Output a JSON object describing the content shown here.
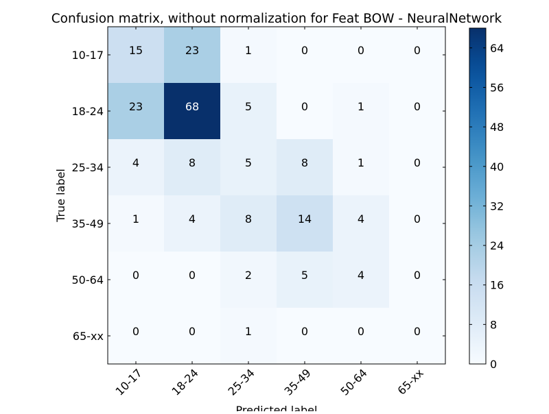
{
  "chart_data": {
    "type": "heatmap",
    "title": "Confusion matrix, without normalization for Feat BOW - NeuralNetwork",
    "xlabel": "Predicted label",
    "ylabel": "True label",
    "x_categories": [
      "10-17",
      "18-24",
      "25-34",
      "35-49",
      "50-64",
      "65-xx"
    ],
    "y_categories": [
      "10-17",
      "18-24",
      "25-34",
      "35-49",
      "50-64",
      "65-xx"
    ],
    "matrix": [
      [
        15,
        23,
        1,
        0,
        0,
        0
      ],
      [
        23,
        68,
        5,
        0,
        1,
        0
      ],
      [
        4,
        8,
        5,
        8,
        1,
        0
      ],
      [
        1,
        4,
        8,
        14,
        4,
        0
      ],
      [
        0,
        0,
        2,
        5,
        4,
        0
      ],
      [
        0,
        0,
        1,
        0,
        0,
        0
      ]
    ],
    "colormap": "Blues",
    "vmin": 0,
    "vmax": 68,
    "colorbar_ticks": [
      0,
      8,
      16,
      24,
      32,
      40,
      48,
      56,
      64
    ],
    "colors": {
      "low": "#f7fbff",
      "high": "#08306b",
      "text_dark": "#000000",
      "text_light": "#ffffff"
    }
  }
}
